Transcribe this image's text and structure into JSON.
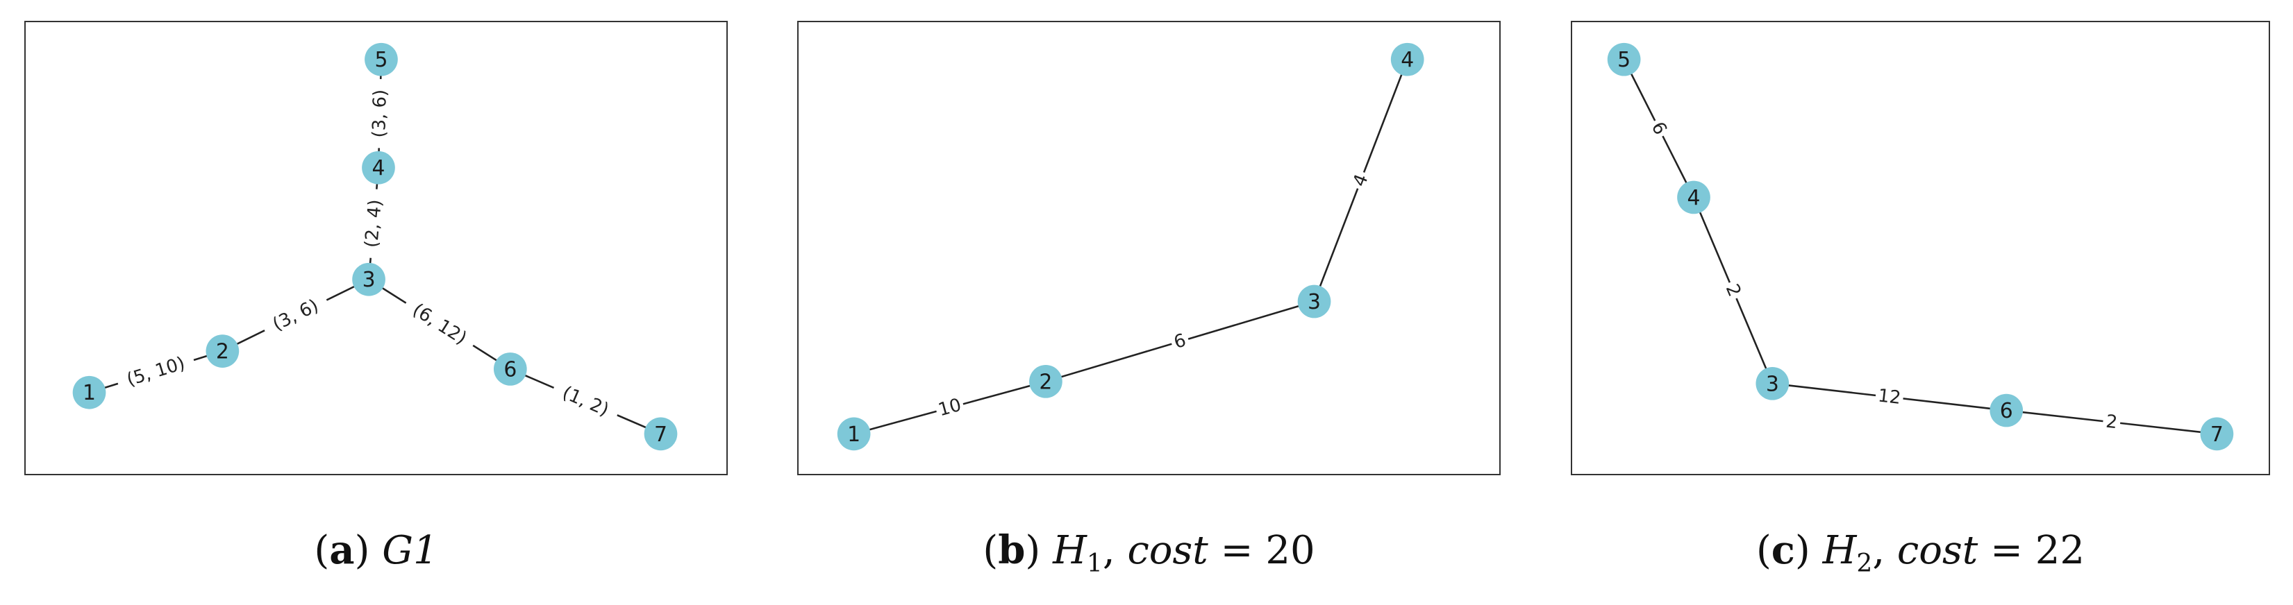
{
  "panels": [
    {
      "id": "a",
      "caption": {
        "tag": "a",
        "title": "G1"
      },
      "nodes": [
        "1",
        "2",
        "3",
        "4",
        "5",
        "6",
        "7"
      ],
      "edges": [
        {
          "from": "1",
          "to": "2",
          "label": "(5, 10)"
        },
        {
          "from": "2",
          "to": "3",
          "label": "(3, 6)"
        },
        {
          "from": "3",
          "to": "4",
          "label": "(2, 4)"
        },
        {
          "from": "4",
          "to": "5",
          "label": "(3, 6)"
        },
        {
          "from": "3",
          "to": "6",
          "label": "(6, 12)"
        },
        {
          "from": "6",
          "to": "7",
          "label": "(1, 2)"
        }
      ]
    },
    {
      "id": "b",
      "caption": {
        "tag": "b",
        "symbol": "H",
        "subscript": "1",
        "cost_label": "cost",
        "equals": "=",
        "cost_value": "20"
      },
      "nodes": [
        "1",
        "2",
        "3",
        "4"
      ],
      "edges": [
        {
          "from": "1",
          "to": "2",
          "label": "10"
        },
        {
          "from": "2",
          "to": "3",
          "label": "6"
        },
        {
          "from": "3",
          "to": "4",
          "label": "4"
        }
      ]
    },
    {
      "id": "c",
      "caption": {
        "tag": "c",
        "symbol": "H",
        "subscript": "2",
        "cost_label": "cost",
        "equals": "=",
        "cost_value": "22"
      },
      "nodes": [
        "5",
        "4",
        "3",
        "6",
        "7"
      ],
      "edges": [
        {
          "from": "5",
          "to": "4",
          "label": "6"
        },
        {
          "from": "4",
          "to": "3",
          "label": "2"
        },
        {
          "from": "3",
          "to": "6",
          "label": "12"
        },
        {
          "from": "6",
          "to": "7",
          "label": "2"
        }
      ]
    }
  ],
  "colors": {
    "node_fill": "#7ec8d8",
    "edge": "#222222",
    "frame": "#333333"
  }
}
